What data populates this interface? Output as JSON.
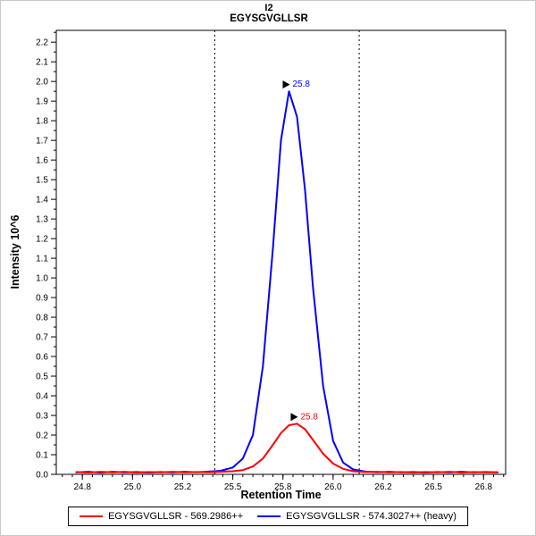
{
  "title": {
    "line1": "I2",
    "line2": "EGYSGVGLLSR"
  },
  "axes": {
    "x_label": "Retention Time",
    "y_label": "Intensity 10^6"
  },
  "legend": {
    "position": "bottom",
    "entries": [
      {
        "label": "EGYSGVGLLSR - 569.2986++",
        "color": "#ff0000"
      },
      {
        "label": "EGYSGVGLLSR - 574.3027++ (heavy)",
        "color": "#0000ff"
      }
    ]
  },
  "chart_data": {
    "type": "line",
    "title": "I2",
    "subtitle": "EGYSGVGLLSR",
    "xlabel": "Retention Time",
    "ylabel": "Intensity 10^6",
    "xlim": [
      24.62,
      26.86
    ],
    "ylim": [
      0,
      2.26
    ],
    "grid": false,
    "x_ticks": [
      {
        "value": 24.75,
        "label": "24.8"
      },
      {
        "value": 25.0,
        "label": "25.0"
      },
      {
        "value": 25.25,
        "label": "25.2"
      },
      {
        "value": 25.5,
        "label": "25.5"
      },
      {
        "value": 25.75,
        "label": "25.8"
      },
      {
        "value": 26.0,
        "label": "26.0"
      },
      {
        "value": 26.25,
        "label": "26.2"
      },
      {
        "value": 26.5,
        "label": "26.5"
      },
      {
        "value": 26.75,
        "label": "26.8"
      }
    ],
    "y_ticks": [
      "0.0",
      "0.1",
      "0.2",
      "0.3",
      "0.4",
      "0.5",
      "0.6",
      "0.7",
      "0.8",
      "0.9",
      "1.0",
      "1.1",
      "1.2",
      "1.3",
      "1.4",
      "1.5",
      "1.6",
      "1.7",
      "1.8",
      "1.9",
      "2.0",
      "2.1",
      "2.2"
    ],
    "integration_boundaries": [
      25.41,
      26.13
    ],
    "series": [
      {
        "name": "EGYSGVGLLSR - 569.2986++",
        "color": "#ff0000",
        "peak_annotation": {
          "label": "25.8",
          "x": 25.82,
          "y": 0.258
        },
        "x": [
          24.72,
          24.78,
          24.84,
          24.9,
          24.96,
          25.02,
          25.08,
          25.14,
          25.2,
          25.26,
          25.32,
          25.38,
          25.44,
          25.5,
          25.55,
          25.6,
          25.65,
          25.7,
          25.74,
          25.78,
          25.82,
          25.86,
          25.9,
          25.95,
          26.0,
          26.05,
          26.1,
          26.16,
          26.22,
          26.28,
          26.34,
          26.4,
          26.46,
          26.52,
          26.58,
          26.64,
          26.7,
          26.76,
          26.82
        ],
        "y": [
          0.012,
          0.009,
          0.013,
          0.01,
          0.013,
          0.009,
          0.012,
          0.01,
          0.013,
          0.01,
          0.012,
          0.011,
          0.013,
          0.016,
          0.022,
          0.04,
          0.08,
          0.15,
          0.21,
          0.25,
          0.258,
          0.23,
          0.175,
          0.105,
          0.055,
          0.028,
          0.016,
          0.012,
          0.013,
          0.01,
          0.012,
          0.009,
          0.012,
          0.01,
          0.013,
          0.009,
          0.012,
          0.01,
          0.011
        ]
      },
      {
        "name": "EGYSGVGLLSR - 574.3027++ (heavy)",
        "color": "#0000ff",
        "peak_annotation": {
          "label": "25.8",
          "x": 25.78,
          "y": 1.95
        },
        "x": [
          24.72,
          24.78,
          24.84,
          24.9,
          24.96,
          25.02,
          25.08,
          25.14,
          25.2,
          25.26,
          25.32,
          25.38,
          25.44,
          25.5,
          25.55,
          25.6,
          25.65,
          25.7,
          25.74,
          25.78,
          25.82,
          25.86,
          25.9,
          25.95,
          26.0,
          26.05,
          26.1,
          26.16,
          26.22,
          26.28,
          26.34,
          26.4,
          26.46,
          26.52,
          26.58,
          26.64,
          26.7,
          26.76,
          26.82
        ],
        "y": [
          0.01,
          0.013,
          0.009,
          0.013,
          0.01,
          0.012,
          0.009,
          0.012,
          0.01,
          0.013,
          0.011,
          0.014,
          0.018,
          0.035,
          0.08,
          0.2,
          0.55,
          1.15,
          1.7,
          1.95,
          1.82,
          1.45,
          0.95,
          0.45,
          0.17,
          0.06,
          0.025,
          0.014,
          0.011,
          0.013,
          0.01,
          0.012,
          0.009,
          0.012,
          0.01,
          0.013,
          0.01,
          0.012,
          0.01
        ]
      }
    ]
  }
}
